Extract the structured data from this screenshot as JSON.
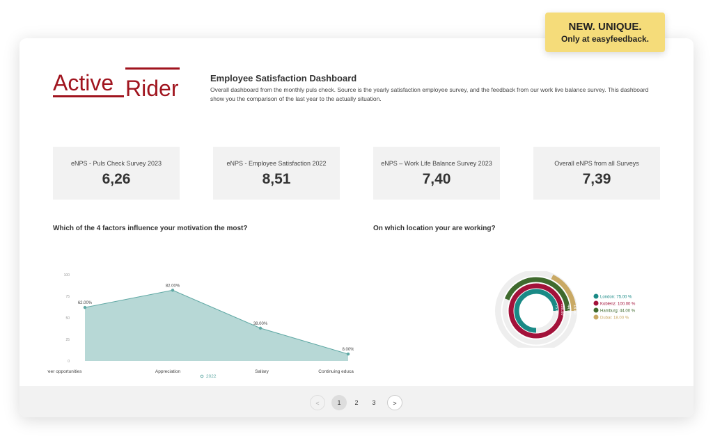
{
  "badge": {
    "line1": "NEW. UNIQUE.",
    "line2": "Only at easyfeedback."
  },
  "logo": {
    "word1": "Active",
    "word2": "Rider",
    "color": "#a0141e"
  },
  "header": {
    "title": "Employee Satisfaction Dashboard",
    "description": "Overall dashboard from the monthly puls check. Source is the yearly satisfaction employee survey, and the feedback from our work live balance survey. This dashboard show you the comparison of the last year to the actually situation."
  },
  "kpis": [
    {
      "label": "eNPS - Puls Check Survey 2023",
      "value": "6,26"
    },
    {
      "label": "eNPS - Employee Satisfaction 2022",
      "value": "8,51"
    },
    {
      "label": "eNPS – Work Life Balance Survey 2023",
      "value": "7,40"
    },
    {
      "label": "Overall eNPS from all Surveys",
      "value": "7,39"
    }
  ],
  "questions": {
    "q1": "Which of the 4 factors influence your motivation the most?",
    "q2": "On which location your are working?"
  },
  "chart_data": [
    {
      "type": "area",
      "categories": [
        "Career opportunities",
        "Appreciation",
        "Sallary",
        "Continuing educatio"
      ],
      "series": [
        {
          "name": "2022",
          "values": [
            62,
            82,
            38,
            8
          ],
          "labels": [
            "62.00%",
            "82.00%",
            "38.00%",
            "8.00%"
          ]
        }
      ],
      "ylim": [
        0,
        100
      ],
      "yticks": [
        0,
        25,
        50,
        75,
        100
      ],
      "color": "#5fa8a4",
      "legend": "bottom"
    },
    {
      "type": "radialBar",
      "series": [
        {
          "name": "London",
          "value": 75,
          "legend": "London: 75.00 %",
          "label": "75.00",
          "color": "#1a8a86"
        },
        {
          "name": "Koblenz",
          "value": 100,
          "legend": "Koblenz: 100.00 %",
          "label": "100.00",
          "color": "#a3123a"
        },
        {
          "name": "Hamburg",
          "value": 44,
          "legend": "Hamburg: 44.00 %",
          "label": "44.00",
          "color": "#3f6a2e"
        },
        {
          "name": "Dubai",
          "value": 18,
          "legend": "Dubai: 18.00 %",
          "label": "18.00",
          "color": "#c9a964"
        }
      ],
      "legend": "right"
    }
  ],
  "pagination": {
    "prev": "<",
    "pages": [
      "1",
      "2",
      "3"
    ],
    "current": "1",
    "next": ">"
  }
}
